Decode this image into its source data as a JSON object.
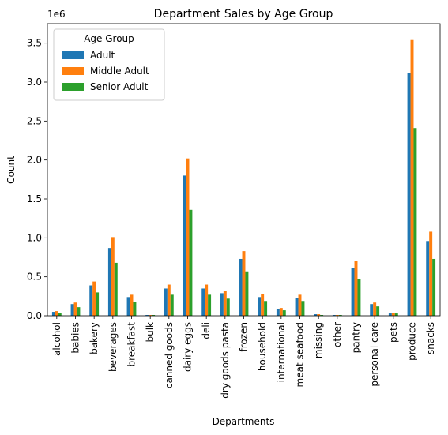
{
  "chart_data": {
    "type": "bar",
    "title": "Department Sales by Age Group",
    "xlabel": "Departments",
    "ylabel": "Count",
    "y_multiplier_label": "1e6",
    "ylim": [
      0,
      3.75
    ],
    "yticks": [
      0.0,
      0.5,
      1.0,
      1.5,
      2.0,
      2.5,
      3.0,
      3.5
    ],
    "ytick_labels": [
      "0.0",
      "0.5",
      "1.0",
      "1.5",
      "2.0",
      "2.5",
      "3.0",
      "3.5"
    ],
    "grid": false,
    "legend": {
      "title": "Age Group",
      "placement": "top-left"
    },
    "categories": [
      "alcohol",
      "babies",
      "bakery",
      "beverages",
      "breakfast",
      "bulk",
      "canned goods",
      "dairy eggs",
      "deli",
      "dry goods pasta",
      "frozen",
      "household",
      "international",
      "meat seafood",
      "missing",
      "other",
      "pantry",
      "personal care",
      "pets",
      "produce",
      "snacks"
    ],
    "series": [
      {
        "name": "Adult",
        "color": "#1f77b4",
        "values": [
          0.05,
          0.15,
          0.39,
          0.87,
          0.24,
          0.01,
          0.35,
          1.8,
          0.35,
          0.29,
          0.73,
          0.24,
          0.09,
          0.23,
          0.02,
          0.01,
          0.61,
          0.15,
          0.03,
          3.12,
          0.96
        ]
      },
      {
        "name": "Middle Adult",
        "color": "#ff7f0e",
        "values": [
          0.06,
          0.17,
          0.44,
          1.01,
          0.27,
          0.01,
          0.4,
          2.02,
          0.4,
          0.32,
          0.83,
          0.28,
          0.1,
          0.27,
          0.02,
          0.01,
          0.7,
          0.17,
          0.04,
          3.54,
          1.08
        ]
      },
      {
        "name": "Senior Adult",
        "color": "#2ca02c",
        "values": [
          0.04,
          0.11,
          0.3,
          0.68,
          0.18,
          0.01,
          0.27,
          1.36,
          0.27,
          0.22,
          0.57,
          0.19,
          0.07,
          0.19,
          0.01,
          0.01,
          0.47,
          0.12,
          0.03,
          2.41,
          0.73
        ]
      }
    ]
  }
}
